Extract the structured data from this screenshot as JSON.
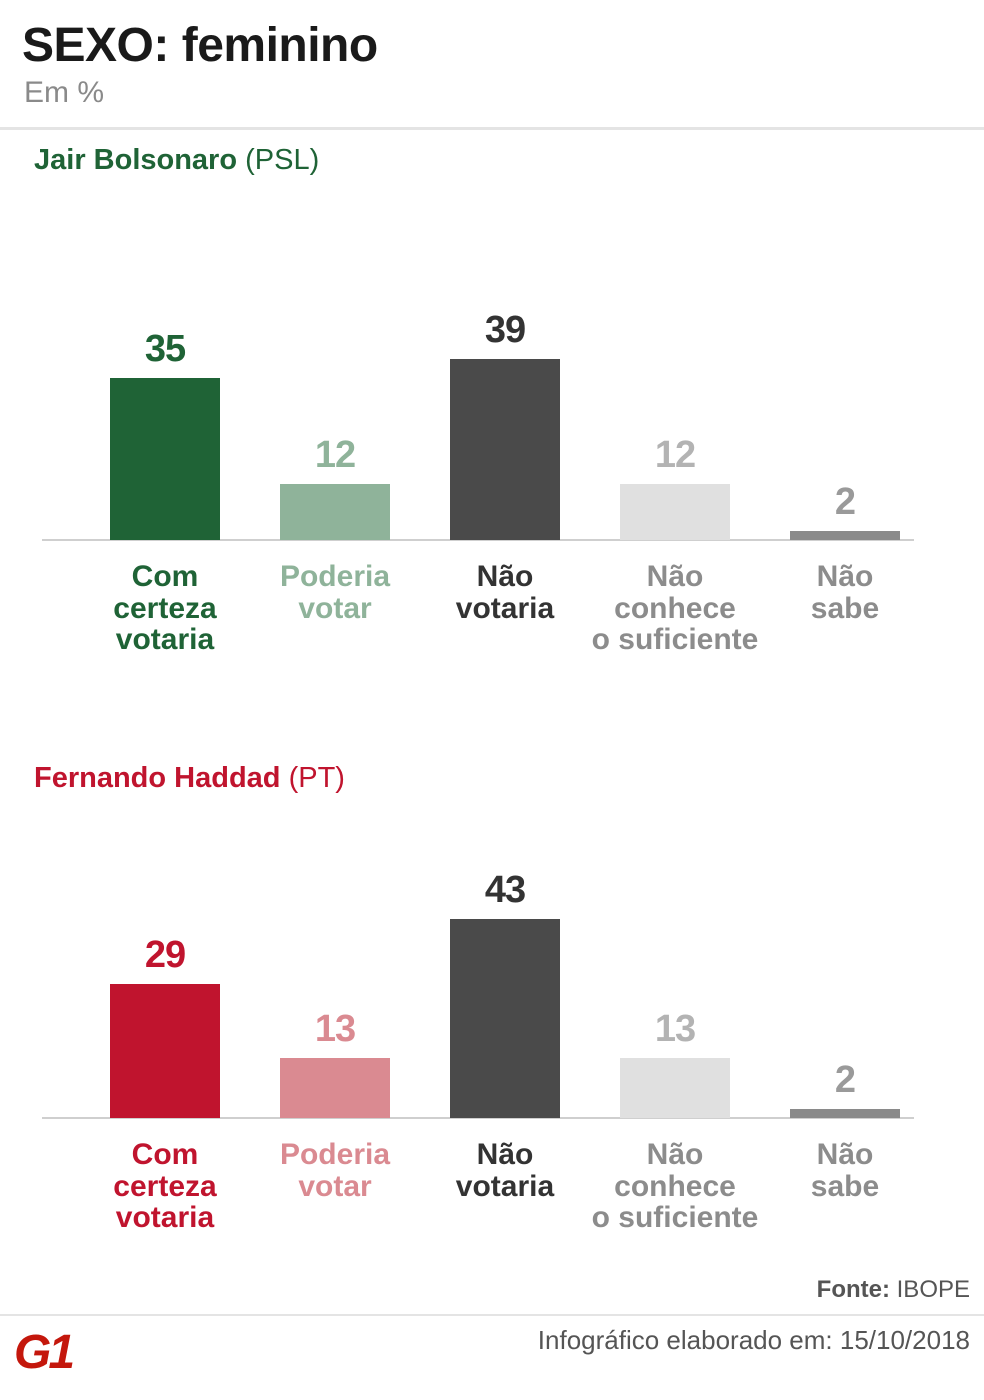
{
  "header": {
    "title": "SEXO: feminino",
    "subtitle": "Em %"
  },
  "chart_data": [
    {
      "type": "bar",
      "title": "Jair Bolsonaro",
      "party": "(PSL)",
      "color": "#1f6336",
      "categories": [
        "Com\ncerteza\nvotaria",
        "Poderia\nvotar",
        "Não\nvotaria",
        "Não\nconhece\no suficiente",
        "Não\nsabe"
      ],
      "values": [
        35,
        12,
        39,
        12,
        2
      ],
      "bar_colors": [
        "#1f6336",
        "#8fb39a",
        "#4a4a4a",
        "#e0e0e0",
        "#8a8a8a"
      ],
      "value_colors": [
        "#1f6336",
        "#8fb39a",
        "#333333",
        "#b3b3b3",
        "#9a9a9a"
      ],
      "label_colors": [
        "#1f6336",
        "#8fb39a",
        "#333333",
        "#8c8c8c",
        "#8c8c8c"
      ]
    },
    {
      "type": "bar",
      "title": "Fernando Haddad",
      "party": "(PT)",
      "color": "#c0142e",
      "categories": [
        "Com\ncerteza\nvotaria",
        "Poderia\nvotar",
        "Não\nvotaria",
        "Não\nconhece\no suficiente",
        "Não\nsabe"
      ],
      "values": [
        29,
        13,
        43,
        13,
        2
      ],
      "bar_colors": [
        "#c0142e",
        "#da8a91",
        "#4a4a4a",
        "#e0e0e0",
        "#8a8a8a"
      ],
      "value_colors": [
        "#c0142e",
        "#da8a91",
        "#333333",
        "#b3b3b3",
        "#9a9a9a"
      ],
      "label_colors": [
        "#c0142e",
        "#da8a91",
        "#333333",
        "#8c8c8c",
        "#8c8c8c"
      ]
    }
  ],
  "footer": {
    "source_label": "Fonte:",
    "source": "IBOPE",
    "logo": "G1",
    "credit": "Infográfico elaborado em: 15/10/2018"
  }
}
